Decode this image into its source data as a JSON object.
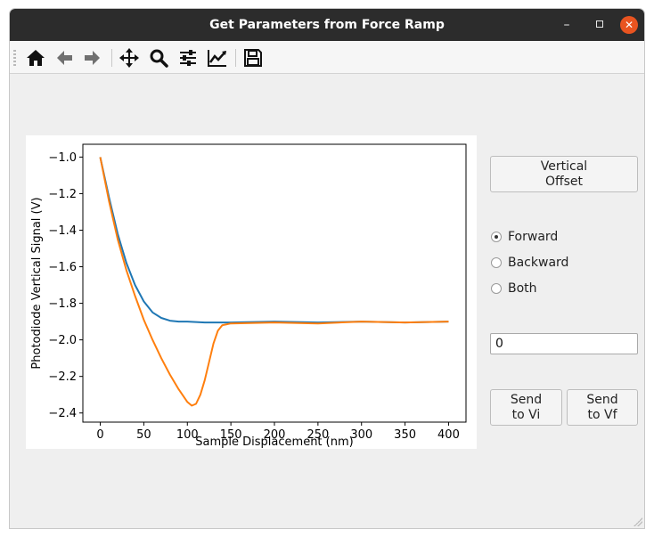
{
  "window": {
    "title": "Get Parameters from Force Ramp",
    "minimize_icon": "minimize-icon",
    "maximize_icon": "maximize-icon",
    "close_icon": "close-icon"
  },
  "toolbar": {
    "icons": [
      "home-icon",
      "back-arrow-icon",
      "forward-arrow-icon",
      "pan-icon",
      "zoom-icon",
      "configure-subplots-icon",
      "edit-axes-icon",
      "save-icon"
    ]
  },
  "controls": {
    "vertical_offset_label": "Vertical\nOffset",
    "radio_options": [
      {
        "label": "Forward",
        "checked": true
      },
      {
        "label": "Backward",
        "checked": false
      },
      {
        "label": "Both",
        "checked": false
      }
    ],
    "value_input": "0",
    "send_vi_label": "Send\nto Vi",
    "send_vf_label": "Send\nto Vf"
  },
  "colors": {
    "series1": "#1f77b4",
    "series2": "#ff7f0e",
    "titlebar": "#2c2c2c",
    "close": "#e95420"
  },
  "chart_data": {
    "type": "line",
    "title": "",
    "xlabel": "Sample Displacement (nm)",
    "ylabel": "Photodiode Vertical Signal (V)",
    "xlim": [
      -20,
      420
    ],
    "ylim": [
      -2.45,
      -0.93
    ],
    "xticks": [
      0,
      50,
      100,
      150,
      200,
      250,
      300,
      350,
      400
    ],
    "yticks": [
      -1.0,
      -1.2,
      -1.4,
      -1.6,
      -1.8,
      -2.0,
      -2.2,
      -2.4
    ],
    "grid": false,
    "series": [
      {
        "color": "#1f77b4",
        "x": [
          0,
          10,
          20,
          30,
          40,
          50,
          60,
          70,
          80,
          90,
          100,
          120,
          150,
          200,
          250,
          300,
          350,
          400
        ],
        "y": [
          -1.0,
          -1.22,
          -1.42,
          -1.58,
          -1.7,
          -1.79,
          -1.85,
          -1.88,
          -1.895,
          -1.9,
          -1.9,
          -1.905,
          -1.905,
          -1.9,
          -1.905,
          -1.9,
          -1.905,
          -1.9
        ]
      },
      {
        "color": "#ff7f0e",
        "x": [
          0,
          10,
          20,
          30,
          40,
          50,
          60,
          70,
          80,
          90,
          100,
          105,
          110,
          115,
          120,
          125,
          130,
          135,
          140,
          150,
          200,
          250,
          300,
          350,
          400
        ],
        "y": [
          -1.0,
          -1.24,
          -1.45,
          -1.62,
          -1.76,
          -1.89,
          -2.0,
          -2.1,
          -2.19,
          -2.27,
          -2.34,
          -2.36,
          -2.35,
          -2.3,
          -2.22,
          -2.12,
          -2.02,
          -1.95,
          -1.92,
          -1.91,
          -1.905,
          -1.91,
          -1.9,
          -1.905,
          -1.9
        ]
      }
    ]
  }
}
